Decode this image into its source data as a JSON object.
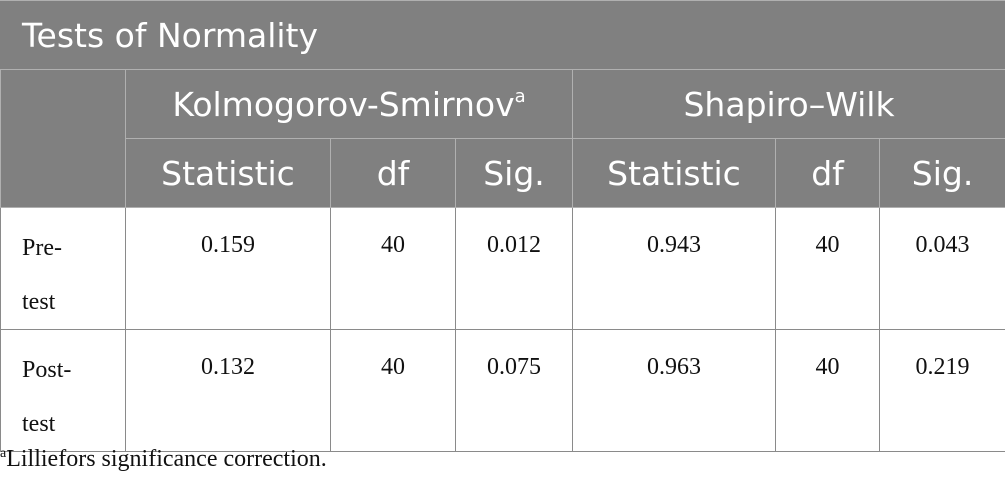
{
  "table": {
    "title": "Tests of Normality",
    "groups": {
      "ks": {
        "label": "Kolmogorov-Smirnov",
        "superscript": "a"
      },
      "sw": {
        "label": "Shapiro–Wilk"
      }
    },
    "subheaders": [
      "Statistic",
      "df",
      "Sig.",
      "Statistic",
      "df",
      "Sig."
    ],
    "rows": [
      {
        "label": "Pre-test",
        "ks": {
          "statistic": "0.159",
          "df": "40",
          "sig": "0.012"
        },
        "sw": {
          "statistic": "0.943",
          "df": "40",
          "sig": "0.043"
        }
      },
      {
        "label": "Post-test",
        "ks": {
          "statistic": "0.132",
          "df": "40",
          "sig": "0.075"
        },
        "sw": {
          "statistic": "0.963",
          "df": "40",
          "sig": "0.219"
        }
      }
    ]
  },
  "footnote": {
    "marker": "a",
    "text": "Lilliefors significance correction."
  }
}
